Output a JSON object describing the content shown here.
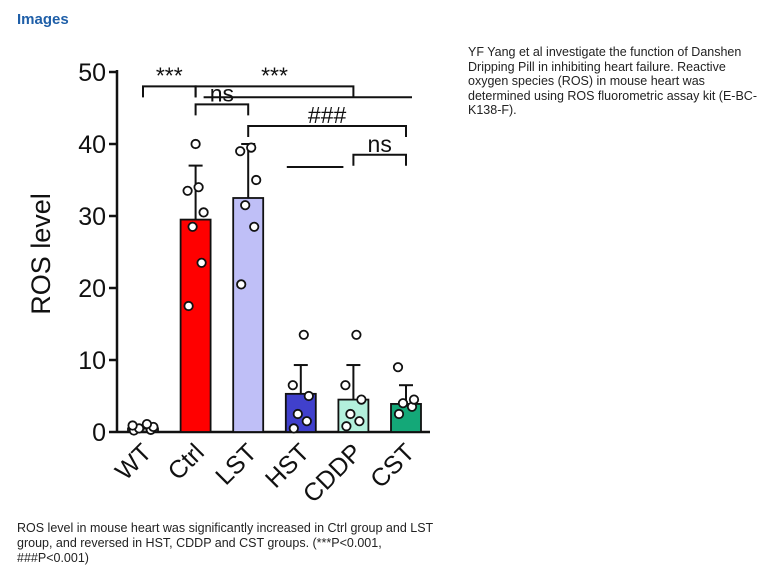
{
  "header": {
    "title": "Images"
  },
  "description": "YF Yang et al investigate the function of Danshen Dripping Pill in inhibiting heart failure. Reactive oxygen species (ROS) in mouse heart was determined using ROS fluorometric assay kit (E-BC-K138-F).",
  "caption": "ROS level in mouse heart was significantly increased in Ctrl group and LST group, and reversed in HST, CDDP and CST groups. (***P<0.001, ###P<0.001)",
  "chart_data": {
    "type": "bar",
    "title": "",
    "xlabel": "",
    "ylabel": "ROS level",
    "ylim": [
      0,
      50
    ],
    "yticks": [
      0,
      10,
      20,
      30,
      40,
      50
    ],
    "categories": [
      "WT",
      "Ctrl",
      "LST",
      "HST",
      "CDDP",
      "CST"
    ],
    "values": [
      0.5,
      29.5,
      32.5,
      5.3,
      4.5,
      3.9
    ],
    "errors": [
      0.3,
      7.5,
      7.5,
      4.0,
      4.8,
      2.6
    ],
    "colors": [
      "#9e9e9e",
      "#ff0000",
      "#bfbff7",
      "#4040cc",
      "#b3f0dc",
      "#14a878"
    ],
    "points": [
      [
        0.2,
        0.3,
        0.5,
        0.7,
        0.9,
        1.1
      ],
      [
        17.5,
        23.5,
        28.5,
        30.5,
        33.5,
        34.0,
        40.0
      ],
      [
        20.5,
        28.5,
        31.5,
        35.0,
        39.0,
        39.5
      ],
      [
        0.5,
        1.5,
        2.5,
        5.0,
        6.5,
        13.5
      ],
      [
        0.8,
        1.5,
        2.5,
        4.5,
        6.5,
        13.5
      ],
      [
        2.5,
        3.5,
        4.0,
        4.5,
        9.0
      ]
    ],
    "comparisons": [
      {
        "from": 0,
        "to": 1,
        "label": "***",
        "y": 48.0
      },
      {
        "from": 1,
        "to": 2,
        "label": "ns",
        "y": 45.5
      },
      {
        "from": 1,
        "to": 4,
        "label": "***",
        "y": 48.0
      },
      {
        "from": 2,
        "to": 5,
        "label": "###",
        "y": 42.5
      },
      {
        "from": 4,
        "to": 5,
        "label": "ns",
        "y": 38.5
      }
    ]
  }
}
